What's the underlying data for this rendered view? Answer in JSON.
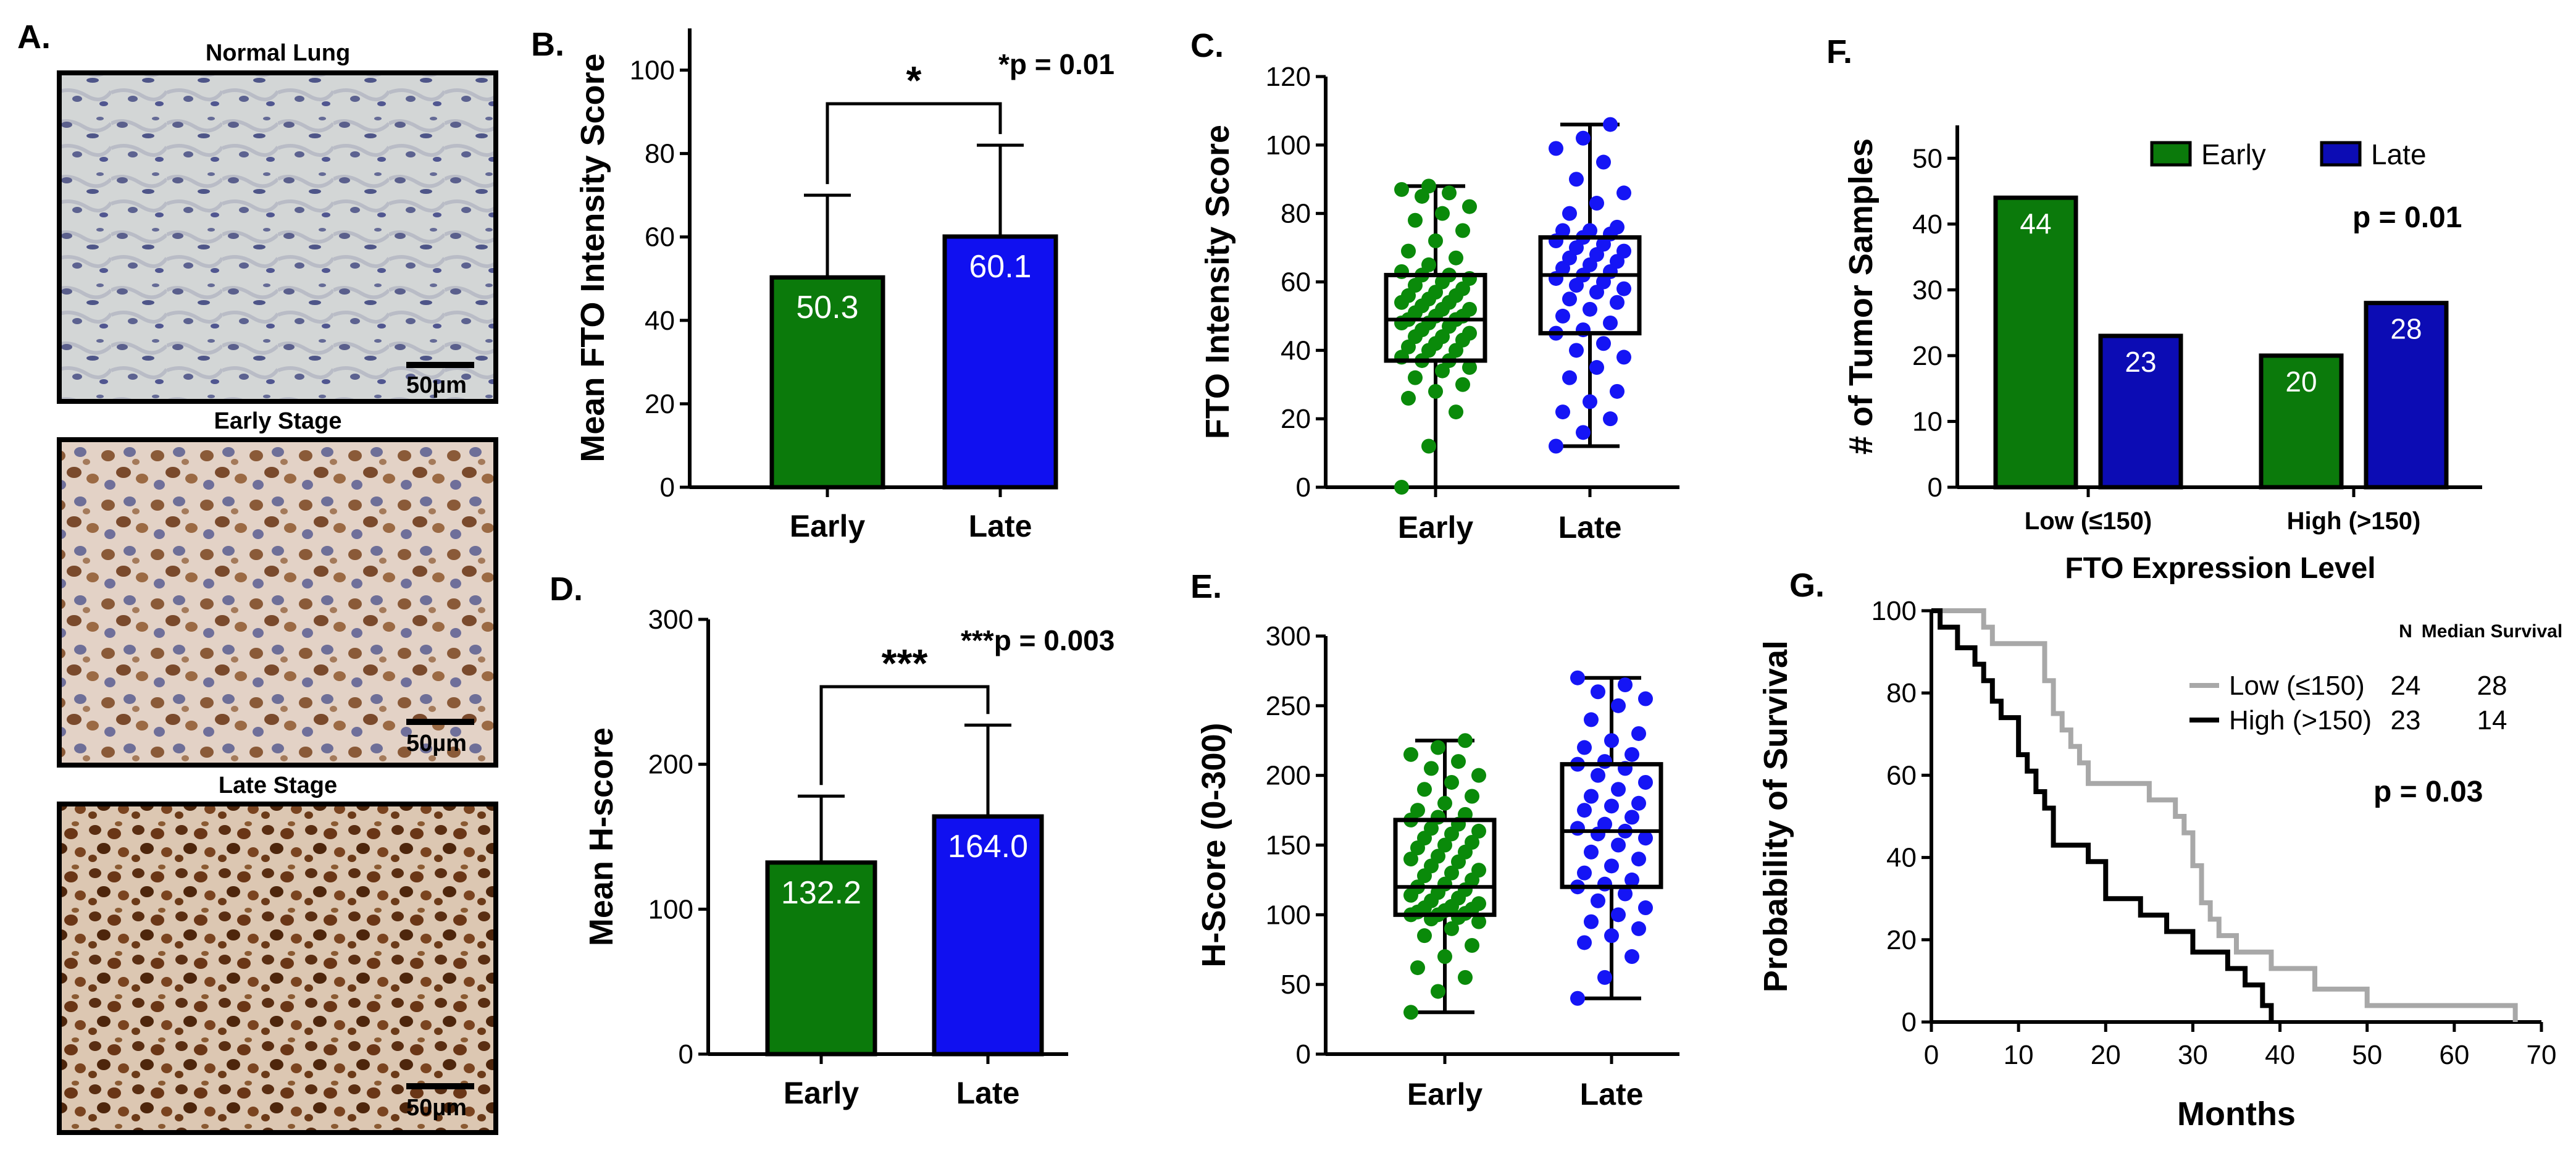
{
  "panel_labels": {
    "A": "A.",
    "B": "B.",
    "C": "C.",
    "D": "D.",
    "E": "E.",
    "F": "F.",
    "G": "G."
  },
  "micrographs": [
    {
      "title": "Normal Lung",
      "scale_bar": "50µm",
      "stain": "normal-lung-tissue"
    },
    {
      "title": "Early Stage",
      "scale_bar": "50µm",
      "stain": "early-stage-tissue"
    },
    {
      "title": "Late Stage",
      "scale_bar": "50µm",
      "stain": "late-stage-tissue"
    }
  ],
  "colors": {
    "early": "#0b7a0b",
    "late": "#1010f0",
    "early_dot": "#0a8a0a",
    "late_dot": "#1515f5",
    "early_dark": "#0e7a0e",
    "late_dark": "#0c0cb4",
    "low": "#a8a8a8",
    "high": "#000000"
  },
  "chart_data": [
    {
      "id": "B",
      "type": "bar",
      "ylabel": "Mean FTO Intensity Score",
      "ylim": [
        0,
        110
      ],
      "yticks": [
        "0",
        "20",
        "40",
        "60",
        "80",
        "100"
      ],
      "categories": [
        "Early",
        "Late"
      ],
      "values": [
        50.3,
        60.1
      ],
      "value_labels": [
        "50.3",
        "60.1"
      ],
      "error_upper": [
        70,
        82
      ],
      "significance": "*",
      "pvalue": "*p = 0.01"
    },
    {
      "id": "C",
      "type": "scatter",
      "ylabel": "FTO Intensity Score",
      "ylim": [
        0,
        120
      ],
      "yticks": [
        "0",
        "20",
        "40",
        "60",
        "80",
        "100",
        "120"
      ],
      "categories": [
        "Early",
        "Late"
      ],
      "boxplots": [
        {
          "min": 0,
          "q1": 37,
          "median": 49,
          "q3": 62,
          "max": 88
        },
        {
          "min": 12,
          "q1": 45,
          "median": 62,
          "q3": 73,
          "max": 106
        }
      ],
      "points": [
        [
          0,
          12,
          22,
          26,
          28,
          30,
          32,
          34,
          35,
          37,
          37,
          38,
          40,
          40,
          41,
          42,
          43,
          44,
          44,
          45,
          46,
          47,
          48,
          48,
          49,
          49,
          50,
          50,
          51,
          52,
          52,
          53,
          54,
          54,
          55,
          56,
          56,
          57,
          58,
          59,
          60,
          61,
          62,
          62,
          63,
          65,
          67,
          69,
          72,
          75,
          78,
          80,
          82,
          85,
          86,
          87,
          88
        ],
        [
          12,
          16,
          20,
          22,
          25,
          28,
          32,
          35,
          38,
          40,
          42,
          45,
          46,
          48,
          50,
          52,
          54,
          55,
          57,
          58,
          59,
          60,
          61,
          62,
          63,
          64,
          65,
          66,
          67,
          68,
          69,
          70,
          71,
          72,
          73,
          74,
          75,
          75,
          76,
          80,
          83,
          86,
          90,
          95,
          99,
          102,
          106
        ]
      ]
    },
    {
      "id": "D",
      "type": "bar",
      "ylabel": "Mean H-score",
      "ylim": [
        0,
        300
      ],
      "yticks": [
        "0",
        "100",
        "200",
        "300"
      ],
      "categories": [
        "Early",
        "Late"
      ],
      "values": [
        132.2,
        164.0
      ],
      "value_labels": [
        "132.2",
        "164.0"
      ],
      "error_upper": [
        178,
        227
      ],
      "significance": "***",
      "pvalue": "***p = 0.003"
    },
    {
      "id": "E",
      "type": "scatter",
      "ylabel": "H-Score (0-300)",
      "ylim": [
        0,
        300
      ],
      "yticks": [
        "0",
        "50",
        "100",
        "150",
        "200",
        "250",
        "300"
      ],
      "categories": [
        "Early",
        "Late"
      ],
      "boxplots": [
        {
          "min": 30,
          "q1": 100,
          "median": 120,
          "q3": 168,
          "max": 225
        },
        {
          "min": 40,
          "q1": 120,
          "median": 160,
          "q3": 208,
          "max": 270
        }
      ],
      "points": [
        [
          30,
          45,
          55,
          62,
          70,
          78,
          85,
          90,
          95,
          97,
          98,
          100,
          100,
          101,
          102,
          103,
          104,
          105,
          106,
          108,
          110,
          112,
          114,
          116,
          118,
          120,
          122,
          125,
          128,
          130,
          132,
          135,
          138,
          140,
          142,
          145,
          148,
          150,
          152,
          155,
          158,
          160,
          162,
          165,
          168,
          170,
          172,
          175,
          180,
          185,
          190,
          195,
          200,
          205,
          210,
          215,
          220,
          225
        ],
        [
          40,
          55,
          70,
          80,
          85,
          90,
          95,
          100,
          105,
          110,
          115,
          120,
          122,
          125,
          130,
          135,
          140,
          145,
          150,
          155,
          158,
          160,
          162,
          165,
          170,
          175,
          178,
          180,
          185,
          190,
          195,
          200,
          205,
          208,
          210,
          215,
          220,
          225,
          230,
          240,
          250,
          255,
          260,
          265,
          270
        ]
      ]
    },
    {
      "id": "F",
      "type": "bar",
      "ylabel": "# of Tumor Samples",
      "xlabel": "FTO Expression Level",
      "ylim": [
        0,
        55
      ],
      "yticks": [
        "0",
        "10",
        "20",
        "30",
        "40",
        "50"
      ],
      "categories": [
        "Low (≤150)",
        "High (>150)"
      ],
      "series": [
        {
          "name": "Early",
          "values": [
            44,
            20
          ],
          "value_labels": [
            "44",
            "20"
          ]
        },
        {
          "name": "Late",
          "values": [
            23,
            28
          ],
          "value_labels": [
            "23",
            "28"
          ]
        }
      ],
      "pvalue": "p = 0.01"
    },
    {
      "id": "G",
      "type": "line",
      "ylabel": "Probability of Survival",
      "xlabel": "Months",
      "xlim": [
        0,
        70
      ],
      "ylim": [
        0,
        100
      ],
      "xticks": [
        "0",
        "10",
        "20",
        "30",
        "40",
        "50",
        "60",
        "70"
      ],
      "yticks": [
        "0",
        "20",
        "40",
        "60",
        "80",
        "100"
      ],
      "legend_headers": {
        "n": "N",
        "median": "Median Survival"
      },
      "series": [
        {
          "name": "Low (≤150)",
          "n": "24",
          "median": "28",
          "x": [
            0,
            4,
            6,
            7,
            10,
            13,
            14,
            15,
            16,
            17,
            18,
            25,
            28,
            29,
            30,
            31,
            32,
            33,
            35,
            39,
            44,
            50,
            66,
            67
          ],
          "y": [
            100,
            100,
            96,
            92,
            92,
            83,
            75,
            71,
            67,
            63,
            58,
            54,
            50,
            46,
            38,
            29,
            25,
            21,
            17,
            13,
            8,
            4,
            4,
            0
          ]
        },
        {
          "name": "High (>150)",
          "n": "23",
          "median": "14",
          "x": [
            0,
            1,
            3,
            5,
            6,
            7,
            8,
            10,
            11,
            12,
            13,
            14,
            18,
            20,
            24,
            27,
            30,
            34,
            36,
            38,
            39
          ],
          "y": [
            100,
            96,
            91,
            87,
            83,
            78,
            74,
            65,
            61,
            56,
            52,
            43,
            39,
            30,
            26,
            22,
            17,
            13,
            9,
            4,
            0
          ]
        }
      ],
      "pvalue": "p = 0.03"
    }
  ]
}
